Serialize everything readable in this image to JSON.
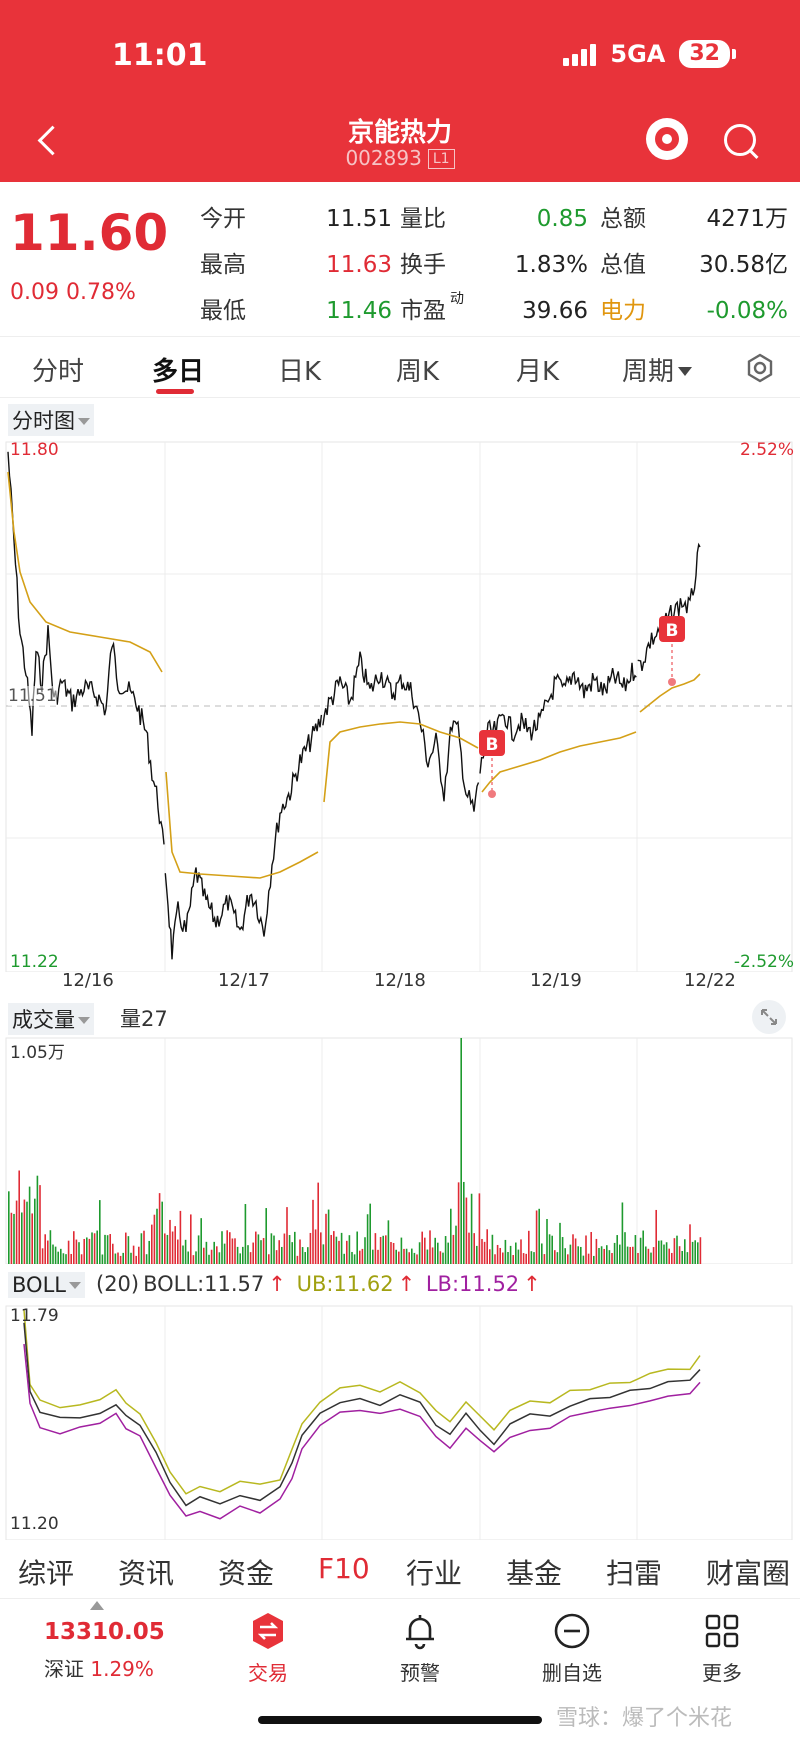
{
  "status_bar": {
    "time": "11:01",
    "network": "5GA",
    "battery": "32"
  },
  "header": {
    "stock_name": "京能热力",
    "stock_code": "002893",
    "level_badge": "L1"
  },
  "quote": {
    "price": "11.60",
    "change": "0.09",
    "change_pct": "0.78%",
    "col1": [
      {
        "label": "今开",
        "value": "11.51",
        "color": "#222222"
      },
      {
        "label": "最高",
        "value": "11.63",
        "color": "#e02b35"
      },
      {
        "label": "最低",
        "value": "11.46",
        "color": "#1e9a2e"
      }
    ],
    "col2": [
      {
        "label": "量比",
        "value": "0.85",
        "color": "#1e9a2e"
      },
      {
        "label": "换手",
        "value": "1.83%",
        "color": "#222222"
      },
      {
        "label": "市盈",
        "sup": "动",
        "value": "39.66",
        "color": "#222222"
      }
    ],
    "col3": [
      {
        "label": "总额",
        "value": "4271万",
        "color": "#222222"
      },
      {
        "label": "总值",
        "value": "30.58亿",
        "color": "#222222"
      },
      {
        "label": "电力",
        "value": "-0.08%",
        "color": "#1e9a2e"
      }
    ]
  },
  "tabs": [
    "分时",
    "多日",
    "日K",
    "周K",
    "月K",
    "周期"
  ],
  "active_tab": "多日",
  "price_chart": {
    "selector": "分时图",
    "y_top": "11.80",
    "y_bottom": "11.22",
    "pct_top": "2.52%",
    "pct_bottom": "-2.52%",
    "mid_label": "11.51",
    "buy_marker": "B"
  },
  "volume_chart": {
    "selector": "成交量",
    "legend": "量27",
    "max_label": "1.05万"
  },
  "boll_chart": {
    "selector": "BOLL",
    "params": "(20)",
    "boll": "BOLL:11.57",
    "ub": "UB:11.62",
    "lb": "LB:11.52",
    "arrow": "↑",
    "y_top": "11.79",
    "y_bottom": "11.20"
  },
  "subnav": [
    "综评",
    "资讯",
    "资金",
    "F10",
    "行业",
    "基金",
    "扫雷",
    "财富圈"
  ],
  "subnav_active": "F10",
  "bottom": {
    "index_value": "13310.05",
    "index_name": "深证",
    "index_pct": "1.29%",
    "buttons": [
      "交易",
      "预警",
      "删自选",
      "更多"
    ]
  },
  "watermark": "雪球：爆了个米花",
  "colors": {
    "red": "#e02b35",
    "green": "#1e9a2e",
    "header": "#e8333a",
    "avg_line": "#d4a017",
    "ub": "#b8b820",
    "lb": "#a020a0"
  },
  "chart_data": {
    "type": "line",
    "x": [
      "12/16",
      "12/17",
      "12/18",
      "12/19",
      "12/22"
    ],
    "ylim": [
      11.22,
      11.8
    ],
    "series": [],
    "grid": true
  }
}
